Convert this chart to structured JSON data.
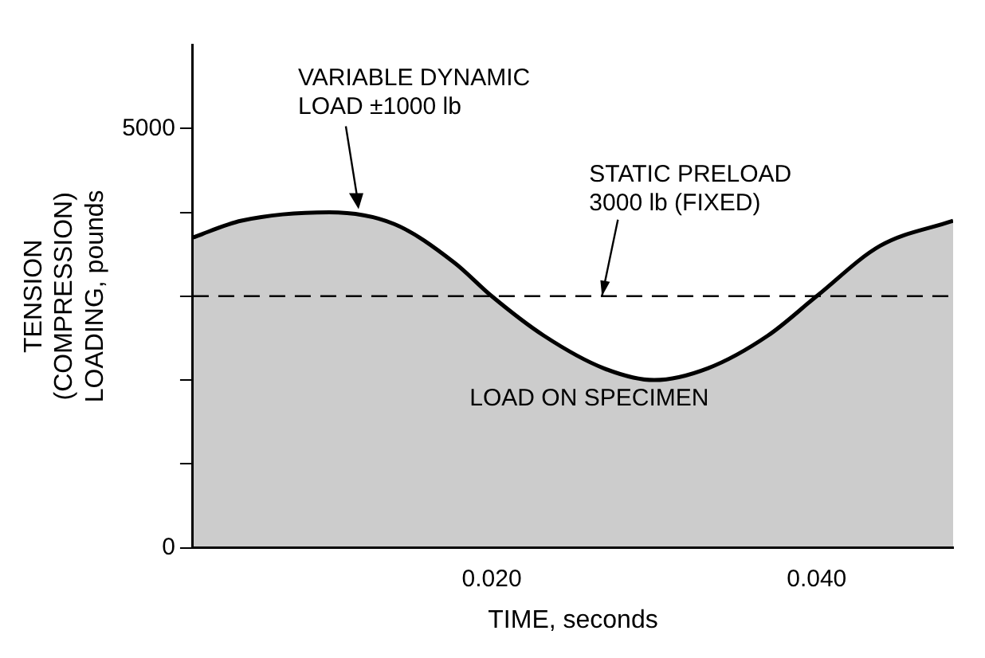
{
  "chart_data": {
    "type": "area",
    "xlabel": "TIME, seconds",
    "ylabel": "TENSION\n(COMPRESSION)\nLOADING, pounds",
    "x": [
      0.0016,
      0.0046,
      0.01,
      0.014,
      0.0177,
      0.02,
      0.0232,
      0.0269,
      0.03,
      0.0333,
      0.037,
      0.04,
      0.0439,
      0.0484
    ],
    "series": [
      {
        "color": "#000000",
        "values": [
          3700,
          3900,
          4000,
          3860,
          3400,
          3000,
          2530,
          2140,
          2000,
          2140,
          2530,
          3000,
          3600,
          3900
        ]
      }
    ],
    "xlim": [
      0.0016,
      0.0484
    ],
    "xticks": [
      {
        "value": 0.02,
        "label": "0.020"
      },
      {
        "value": 0.04,
        "label": "0.040"
      }
    ],
    "ylim": [
      0,
      6000
    ],
    "yticks": [
      0,
      {
        "value": 1000,
        "label": null
      },
      {
        "value": 2000,
        "label": null
      },
      {
        "value": 3000,
        "label": null
      },
      {
        "value": 4000,
        "label": null
      },
      5000
    ],
    "ref_lines": [
      {
        "axis": "y",
        "value": 3000,
        "label": "STATIC PRELOAD\n3000 lb (FIXED)",
        "line_style": "dashed",
        "color": "#000000"
      }
    ],
    "annotations": [
      {
        "text": "VARIABLE DYNAMIC\nLOAD ±1000 lb",
        "x": 0.012,
        "y": 4000
      },
      "LOAD ON SPECIMEN"
    ],
    "grid": false,
    "legend": false
  }
}
